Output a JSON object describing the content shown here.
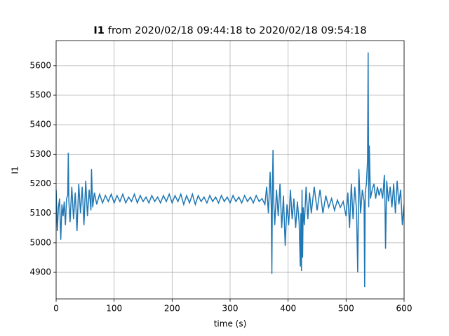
{
  "chart_data": {
    "type": "line",
    "title": [
      "I1",
      "from 2020/02/18 09:44:18 to 2020/02/18 09:54:18"
    ],
    "xlabel": "time (s)",
    "ylabel": "I1",
    "xlim": [
      0,
      600
    ],
    "xticks": [
      0,
      100,
      200,
      300,
      400,
      500,
      600
    ],
    "ylim": [
      4810,
      5685
    ],
    "yticks": [
      4900,
      5000,
      5100,
      5200,
      5300,
      5400,
      5500,
      5600
    ],
    "grid": true,
    "x": [
      0,
      2,
      4,
      6,
      8,
      10,
      12,
      14,
      16,
      18,
      20,
      21,
      22,
      24,
      27,
      30,
      33,
      36,
      39,
      42,
      45,
      48,
      51,
      54,
      57,
      60,
      61,
      63,
      66,
      70,
      75,
      80,
      85,
      90,
      95,
      100,
      105,
      110,
      115,
      120,
      125,
      130,
      135,
      140,
      145,
      150,
      155,
      160,
      165,
      170,
      175,
      180,
      185,
      190,
      195,
      200,
      205,
      210,
      215,
      220,
      225,
      230,
      235,
      240,
      245,
      250,
      255,
      260,
      265,
      270,
      275,
      280,
      285,
      290,
      295,
      300,
      305,
      310,
      315,
      320,
      325,
      330,
      335,
      340,
      345,
      350,
      355,
      360,
      363,
      366,
      369,
      371,
      372,
      373,
      374,
      375,
      377,
      380,
      383,
      386,
      389,
      392,
      395,
      398,
      401,
      404,
      407,
      410,
      413,
      416,
      419,
      421,
      422,
      423,
      424,
      425,
      426,
      428,
      431,
      434,
      437,
      440,
      445,
      450,
      455,
      460,
      465,
      470,
      475,
      480,
      485,
      490,
      495,
      500,
      503,
      506,
      509,
      512,
      515,
      518,
      520,
      522,
      525,
      528,
      531,
      532,
      533,
      535,
      537,
      538,
      539,
      540,
      542,
      545,
      548,
      551,
      554,
      557,
      560,
      563,
      566,
      567,
      568,
      570,
      573,
      576,
      579,
      582,
      585,
      588,
      591,
      594,
      597,
      600
    ],
    "series": [
      {
        "name": "I1",
        "color": "#1f77b4",
        "values": [
          5180,
          5040,
          5120,
          5150,
          5010,
          5130,
          5090,
          5140,
          5060,
          5150,
          5160,
          5305,
          5140,
          5070,
          5190,
          5080,
          5170,
          5040,
          5200,
          5100,
          5190,
          5060,
          5210,
          5090,
          5180,
          5110,
          5250,
          5120,
          5170,
          5130,
          5165,
          5135,
          5160,
          5140,
          5165,
          5135,
          5160,
          5140,
          5165,
          5135,
          5155,
          5140,
          5165,
          5135,
          5160,
          5140,
          5155,
          5135,
          5160,
          5140,
          5155,
          5135,
          5160,
          5140,
          5165,
          5135,
          5160,
          5140,
          5165,
          5130,
          5160,
          5135,
          5165,
          5130,
          5160,
          5140,
          5155,
          5135,
          5160,
          5140,
          5155,
          5135,
          5160,
          5140,
          5155,
          5135,
          5160,
          5140,
          5155,
          5135,
          5160,
          5140,
          5155,
          5135,
          5160,
          5140,
          5150,
          5130,
          5190,
          5100,
          5240,
          5120,
          4895,
          5200,
          5315,
          5150,
          5060,
          5180,
          5090,
          5200,
          5050,
          5160,
          4990,
          5130,
          5060,
          5180,
          5080,
          5150,
          5050,
          5140,
          5070,
          4920,
          5100,
          4905,
          5180,
          4950,
          5120,
          5060,
          5190,
          5080,
          5170,
          5100,
          5190,
          5110,
          5180,
          5100,
          5160,
          5120,
          5150,
          5110,
          5145,
          5120,
          5140,
          5090,
          5170,
          5050,
          5200,
          5080,
          5190,
          5110,
          4900,
          5250,
          5100,
          5180,
          5140,
          4850,
          5170,
          5200,
          5280,
          5645,
          5120,
          5330,
          5150,
          5180,
          5200,
          5150,
          5190,
          5160,
          5185,
          5150,
          5230,
          5140,
          4980,
          5210,
          5140,
          5190,
          5120,
          5200,
          5100,
          5210,
          5130,
          5180,
          5060,
          5130
        ]
      }
    ]
  }
}
